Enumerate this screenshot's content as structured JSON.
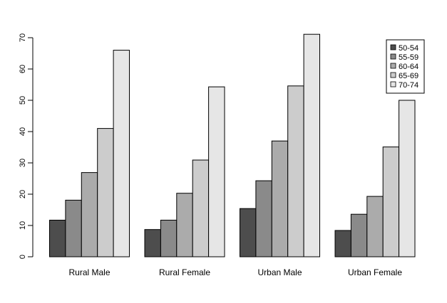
{
  "chart_data": {
    "type": "bar",
    "title": "",
    "xlabel": "",
    "ylabel": "",
    "categories": [
      "Rural Male",
      "Rural Female",
      "Urban Male",
      "Urban Female"
    ],
    "series": [
      {
        "name": "50-54",
        "color": "#4d4d4d",
        "values": [
          11.7,
          8.7,
          15.4,
          8.4
        ]
      },
      {
        "name": "55-59",
        "color": "#8a8a8a",
        "values": [
          18.1,
          11.7,
          24.3,
          13.6
        ]
      },
      {
        "name": "60-64",
        "color": "#ababab",
        "values": [
          26.9,
          20.3,
          37.0,
          19.3
        ]
      },
      {
        "name": "65-69",
        "color": "#cccccc",
        "values": [
          41.0,
          30.9,
          54.6,
          35.1
        ]
      },
      {
        "name": "70-74",
        "color": "#e6e6e6",
        "values": [
          66.0,
          54.3,
          71.1,
          50.0
        ]
      }
    ],
    "ylim": [
      0,
      70
    ],
    "yticks": [
      "0",
      "10",
      "20",
      "30",
      "40",
      "50",
      "60",
      "70"
    ],
    "grid": false,
    "legend_position": "top-right"
  }
}
